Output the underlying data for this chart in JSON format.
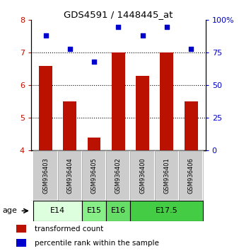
{
  "title": "GDS4591 / 1448445_at",
  "samples": [
    "GSM936403",
    "GSM936404",
    "GSM936405",
    "GSM936402",
    "GSM936400",
    "GSM936401",
    "GSM936406"
  ],
  "red_values": [
    6.6,
    5.5,
    4.4,
    7.0,
    6.3,
    7.0,
    5.5
  ],
  "blue_values": [
    88,
    78,
    68,
    95,
    88,
    95,
    78
  ],
  "ylim_left": [
    4,
    8
  ],
  "ylim_right": [
    0,
    100
  ],
  "yticks_left": [
    4,
    5,
    6,
    7,
    8
  ],
  "yticks_right": [
    0,
    25,
    50,
    75,
    100
  ],
  "ytick_labels_right": [
    "0",
    "25",
    "50",
    "75",
    "100%"
  ],
  "bar_color": "#bb1100",
  "dot_color": "#0000cc",
  "age_groups": [
    {
      "label": "E14",
      "samples": [
        "GSM936403",
        "GSM936404"
      ],
      "color": "#ddffdd"
    },
    {
      "label": "E15",
      "samples": [
        "GSM936405"
      ],
      "color": "#88ee88"
    },
    {
      "label": "E16",
      "samples": [
        "GSM936402"
      ],
      "color": "#66dd66"
    },
    {
      "label": "E17.5",
      "samples": [
        "GSM936400",
        "GSM936401",
        "GSM936406"
      ],
      "color": "#44cc44"
    }
  ],
  "sample_box_color": "#cccccc",
  "legend_red_label": "transformed count",
  "legend_blue_label": "percentile rank within the sample",
  "age_label": "age",
  "background_color": "#ffffff",
  "bar_width": 0.55
}
